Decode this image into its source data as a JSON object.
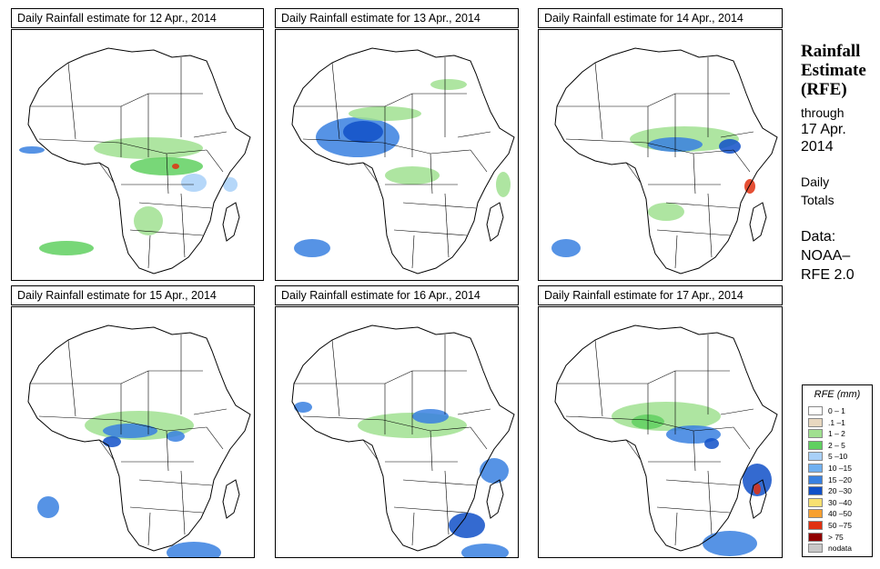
{
  "panels": [
    {
      "title": "Daily Rainfall estimate for  12 Apr., 2014"
    },
    {
      "title": "Daily Rainfall estimate for  13 Apr., 2014"
    },
    {
      "title": "Daily Rainfall estimate for  14 Apr., 2014"
    },
    {
      "title": "Daily Rainfall estimate for  15 Apr., 2014"
    },
    {
      "title": "Daily Rainfall estimate for  16 Apr., 2014"
    },
    {
      "title": "Daily Rainfall estimate for  17 Apr., 2014"
    }
  ],
  "sidebar": {
    "title_line1": "Rainfall",
    "title_line2": "Estimate",
    "title_line3": "(RFE)",
    "through": "through",
    "date_line1": "17 Apr.",
    "date_line2": "2014",
    "totals_line1": "Daily",
    "totals_line2": "Totals",
    "data_line1": "Data:",
    "data_line2": "NOAA–",
    "data_line3": "RFE 2.0"
  },
  "legend": {
    "title": "RFE (mm)",
    "items": [
      {
        "label": "0 – 1",
        "color": "#ffffff"
      },
      {
        "label": ".1 –1",
        "color": "#e8d8c0"
      },
      {
        "label": "1 – 2",
        "color": "#a0e090"
      },
      {
        "label": "2 – 5",
        "color": "#60d060"
      },
      {
        "label": "5 –10",
        "color": "#a8d0f8"
      },
      {
        "label": "10 –15",
        "color": "#70b0f0"
      },
      {
        "label": "15 –20",
        "color": "#3880e0"
      },
      {
        "label": "20 –30",
        "color": "#1050c8"
      },
      {
        "label": "30 –40",
        "color": "#f8e070"
      },
      {
        "label": "40 –50",
        "color": "#f8a030"
      },
      {
        "label": "50 –75",
        "color": "#e03010"
      },
      {
        "label": "> 75",
        "color": "#900000"
      },
      {
        "label": "nodata",
        "color": "#c8c8c8"
      }
    ]
  }
}
